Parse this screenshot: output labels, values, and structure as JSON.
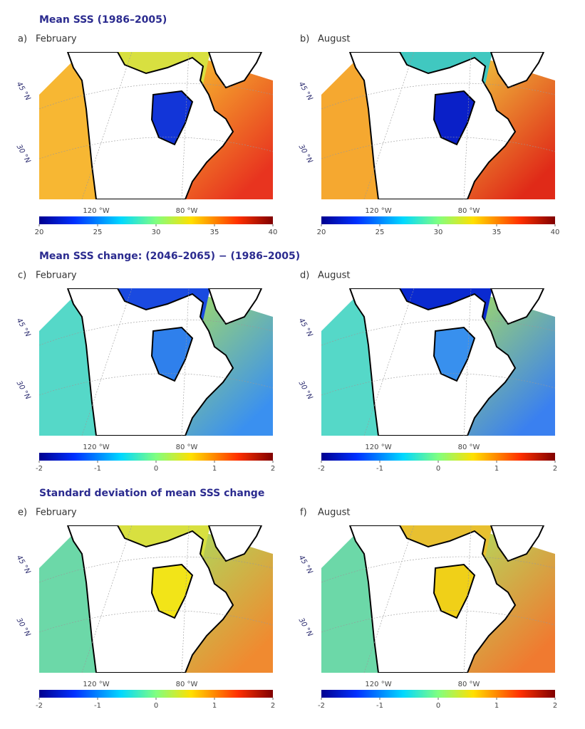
{
  "sections": [
    {
      "title": "Mean SSS (1986–2005)",
      "panels": [
        {
          "label": "a)",
          "month": "February"
        },
        {
          "label": "b)",
          "month": "August"
        }
      ],
      "colorbar": {
        "range": [
          20,
          40
        ],
        "ticks": [
          20,
          25,
          30,
          35,
          40
        ]
      }
    },
    {
      "title": "Mean SSS change: (2046–2065) − (1986–2005)",
      "panels": [
        {
          "label": "c)",
          "month": "February"
        },
        {
          "label": "d)",
          "month": "August"
        }
      ],
      "colorbar": {
        "range": [
          -2,
          2
        ],
        "ticks": [
          -2,
          -1,
          0,
          1,
          2
        ]
      }
    },
    {
      "title": "Standard deviation of mean SSS change",
      "panels": [
        {
          "label": "e)",
          "month": "February"
        },
        {
          "label": "f)",
          "month": "August"
        }
      ],
      "colorbar": {
        "range": [
          -2,
          2
        ],
        "ticks": [
          -2,
          -1,
          0,
          1,
          2
        ]
      }
    }
  ],
  "lat_labels": [
    "45 °N",
    "30 °N"
  ],
  "lon_labels": [
    "120 °W",
    "80 °W"
  ]
}
